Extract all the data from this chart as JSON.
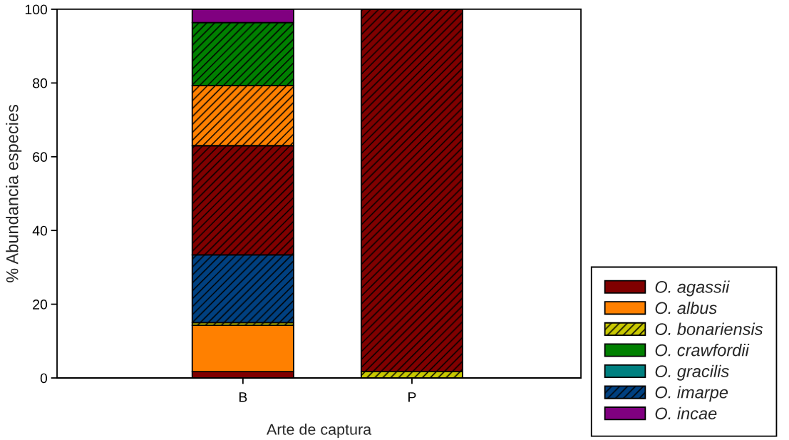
{
  "chart_data": {
    "type": "bar",
    "stacked": true,
    "xlabel": "Arte de captura",
    "ylabel": "% Abundancia especies",
    "categories": [
      "B",
      "P"
    ],
    "ylim": [
      0,
      100
    ],
    "yticks": [
      0,
      20,
      40,
      60,
      80,
      100
    ],
    "legend": "bottom right",
    "series": [
      {
        "name": "O. agassii",
        "color": "#800000",
        "values": [
          1.7,
          null
        ]
      },
      {
        "name": "O. albus",
        "color": "#ff8000",
        "values": [
          12.6,
          null
        ]
      },
      {
        "name": "O. bonariensis",
        "color": "#c8c800",
        "values": [
          0.7,
          1.7
        ]
      },
      {
        "name": "O. crawfordii",
        "color": "#008000",
        "values": [
          null,
          null
        ]
      },
      {
        "name": "O. gracilis",
        "color": "#008080",
        "values": [
          null,
          null
        ]
      },
      {
        "name": "O. imarpe",
        "color": "#004080",
        "values": [
          18.4,
          null
        ]
      },
      {
        "name": "O. incae",
        "color": "#800080",
        "values": [
          null,
          null
        ]
      },
      {
        "color": "#800000",
        "values": [
          29.6,
          98.3
        ]
      },
      {
        "color": "#ff8000",
        "values": [
          16.3,
          null
        ]
      },
      {
        "color": "#008000",
        "values": [
          17.1,
          null
        ]
      },
      {
        "color": "#800080",
        "values": [
          3.6,
          null
        ]
      }
    ]
  }
}
